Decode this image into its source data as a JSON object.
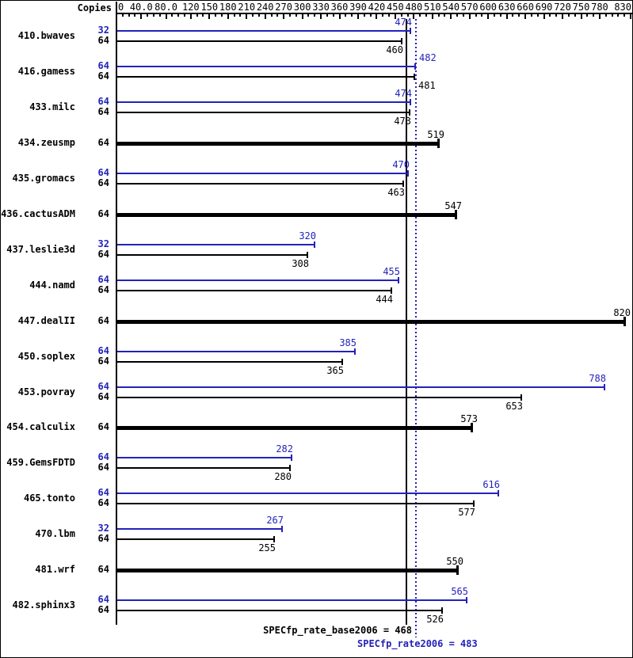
{
  "chart_data": {
    "type": "bar",
    "orientation": "horizontal",
    "copies_header": "Copies",
    "legend_position": "none",
    "grid": false,
    "x_axis": {
      "min": 0,
      "max": 830,
      "minor_tick_step": 10,
      "ticks": [
        {
          "value": 0,
          "label": "0"
        },
        {
          "value": 40,
          "label": "40.0"
        },
        {
          "value": 80,
          "label": "80.0"
        },
        {
          "value": 120,
          "label": "120"
        },
        {
          "value": 150,
          "label": "150"
        },
        {
          "value": 180,
          "label": "180"
        },
        {
          "value": 210,
          "label": "210"
        },
        {
          "value": 240,
          "label": "240"
        },
        {
          "value": 270,
          "label": "270"
        },
        {
          "value": 300,
          "label": "300"
        },
        {
          "value": 330,
          "label": "330"
        },
        {
          "value": 360,
          "label": "360"
        },
        {
          "value": 390,
          "label": "390"
        },
        {
          "value": 420,
          "label": "420"
        },
        {
          "value": 450,
          "label": "450"
        },
        {
          "value": 480,
          "label": "480"
        },
        {
          "value": 510,
          "label": "510"
        },
        {
          "value": 540,
          "label": "540"
        },
        {
          "value": 570,
          "label": "570"
        },
        {
          "value": 600,
          "label": "600"
        },
        {
          "value": 630,
          "label": "630"
        },
        {
          "value": 660,
          "label": "660"
        },
        {
          "value": 690,
          "label": "690"
        },
        {
          "value": 720,
          "label": "720"
        },
        {
          "value": 750,
          "label": "750"
        },
        {
          "value": 780,
          "label": "780"
        },
        {
          "value": 830,
          "label": "830"
        }
      ]
    },
    "series_colors": {
      "peak": "#2222bb",
      "base": "#000000"
    },
    "benchmarks": [
      {
        "name": "410.bwaves",
        "bars": [
          {
            "copies": "32",
            "series": "peak",
            "value": 474
          },
          {
            "copies": "64",
            "series": "base",
            "value": 460
          }
        ]
      },
      {
        "name": "416.gamess",
        "bars": [
          {
            "copies": "64",
            "series": "peak",
            "value": 482,
            "label_side": "right"
          },
          {
            "copies": "64",
            "series": "base",
            "value": 481,
            "label_side": "right"
          }
        ]
      },
      {
        "name": "433.milc",
        "bars": [
          {
            "copies": "64",
            "series": "peak",
            "value": 474
          },
          {
            "copies": "64",
            "series": "base",
            "value": 473
          }
        ]
      },
      {
        "name": "434.zeusmp",
        "bars": [
          {
            "copies": "64",
            "series": "base",
            "value": 519,
            "single": true
          }
        ]
      },
      {
        "name": "435.gromacs",
        "bars": [
          {
            "copies": "64",
            "series": "peak",
            "value": 470
          },
          {
            "copies": "64",
            "series": "base",
            "value": 463
          }
        ]
      },
      {
        "name": "436.cactusADM",
        "bars": [
          {
            "copies": "64",
            "series": "base",
            "value": 547,
            "single": true
          }
        ]
      },
      {
        "name": "437.leslie3d",
        "bars": [
          {
            "copies": "32",
            "series": "peak",
            "value": 320
          },
          {
            "copies": "64",
            "series": "base",
            "value": 308
          }
        ]
      },
      {
        "name": "444.namd",
        "bars": [
          {
            "copies": "64",
            "series": "peak",
            "value": 455
          },
          {
            "copies": "64",
            "series": "base",
            "value": 444
          }
        ]
      },
      {
        "name": "447.dealII",
        "bars": [
          {
            "copies": "64",
            "series": "base",
            "value": 820,
            "single": true
          }
        ]
      },
      {
        "name": "450.soplex",
        "bars": [
          {
            "copies": "64",
            "series": "peak",
            "value": 385
          },
          {
            "copies": "64",
            "series": "base",
            "value": 365
          }
        ]
      },
      {
        "name": "453.povray",
        "bars": [
          {
            "copies": "64",
            "series": "peak",
            "value": 788
          },
          {
            "copies": "64",
            "series": "base",
            "value": 653
          }
        ]
      },
      {
        "name": "454.calculix",
        "bars": [
          {
            "copies": "64",
            "series": "base",
            "value": 573,
            "single": true
          }
        ]
      },
      {
        "name": "459.GemsFDTD",
        "bars": [
          {
            "copies": "64",
            "series": "peak",
            "value": 282
          },
          {
            "copies": "64",
            "series": "base",
            "value": 280
          }
        ]
      },
      {
        "name": "465.tonto",
        "bars": [
          {
            "copies": "64",
            "series": "peak",
            "value": 616
          },
          {
            "copies": "64",
            "series": "base",
            "value": 577
          }
        ]
      },
      {
        "name": "470.lbm",
        "bars": [
          {
            "copies": "32",
            "series": "peak",
            "value": 267
          },
          {
            "copies": "64",
            "series": "base",
            "value": 255
          }
        ]
      },
      {
        "name": "481.wrf",
        "bars": [
          {
            "copies": "64",
            "series": "base",
            "value": 550,
            "single": true
          }
        ]
      },
      {
        "name": "482.sphinx3",
        "bars": [
          {
            "copies": "64",
            "series": "peak",
            "value": 565
          },
          {
            "copies": "64",
            "series": "base",
            "value": 526
          }
        ]
      }
    ],
    "medians": {
      "base": {
        "value": 468,
        "text": "SPECfp_rate_base2006 = 468",
        "line_style": "solid"
      },
      "peak": {
        "value": 483,
        "text": "SPECfp_rate2006 = 483",
        "line_style": "dotted"
      }
    }
  }
}
